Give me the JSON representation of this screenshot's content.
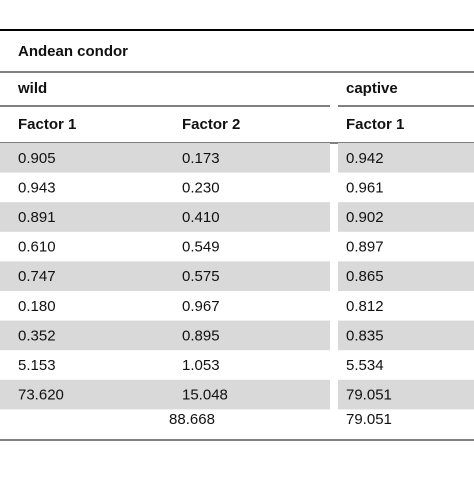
{
  "table": {
    "title": "Andean condor",
    "groups": [
      "wild",
      "captive"
    ],
    "columns": [
      "Factor 1",
      "Factor 2",
      "Factor 1"
    ],
    "rows": [
      [
        "0.905",
        "0.173",
        "0.942"
      ],
      [
        "0.943",
        "0.230",
        "0.961"
      ],
      [
        "0.891",
        "0.410",
        "0.902"
      ],
      [
        "0.610",
        "0.549",
        "0.897"
      ],
      [
        "0.747",
        "0.575",
        "0.865"
      ],
      [
        "0.180",
        "0.967",
        "0.812"
      ],
      [
        "0.352",
        "0.895",
        "0.835"
      ],
      [
        "5.153",
        "1.053",
        "5.534"
      ],
      [
        "73.620",
        "15.048",
        "79.051"
      ]
    ],
    "totals": [
      "88.668",
      "79.051"
    ]
  }
}
